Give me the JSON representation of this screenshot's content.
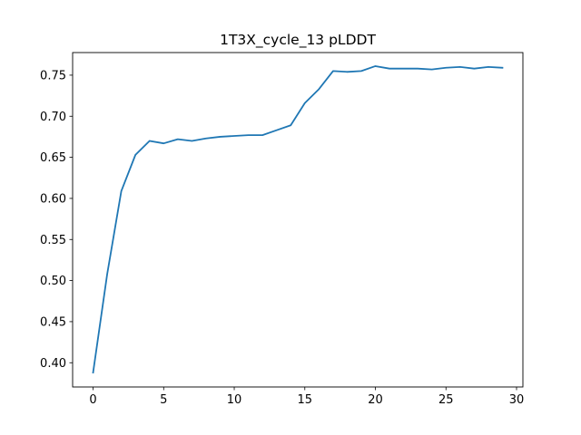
{
  "chart_data": {
    "type": "line",
    "title": "1T3X_cycle_13 pLDDT",
    "xlabel": "",
    "ylabel": "",
    "xlim": [
      -1.45,
      30.45
    ],
    "ylim": [
      0.3705,
      0.7775
    ],
    "xticks": [
      0,
      5,
      10,
      15,
      20,
      25,
      30
    ],
    "yticks": [
      0.4,
      0.45,
      0.5,
      0.55,
      0.6,
      0.65,
      0.7,
      0.75
    ],
    "x_tick_labels": [
      "0",
      "5",
      "10",
      "15",
      "20",
      "25",
      "30"
    ],
    "y_tick_labels": [
      "0.40",
      "0.45",
      "0.50",
      "0.55",
      "0.60",
      "0.65",
      "0.70",
      "0.75"
    ],
    "grid": false,
    "legend": "none",
    "series": [
      {
        "color": "#1f77b4",
        "x": [
          0,
          1,
          2,
          3,
          4,
          5,
          6,
          7,
          8,
          9,
          10,
          11,
          12,
          13,
          14,
          15,
          16,
          17,
          18,
          19,
          20,
          21,
          22,
          23,
          24,
          25,
          26,
          27,
          28,
          29
        ],
        "y": [
          0.388,
          0.508,
          0.609,
          0.653,
          0.67,
          0.667,
          0.672,
          0.67,
          0.673,
          0.675,
          0.676,
          0.677,
          0.677,
          0.683,
          0.689,
          0.716,
          0.733,
          0.755,
          0.754,
          0.755,
          0.761,
          0.758,
          0.758,
          0.758,
          0.757,
          0.759,
          0.76,
          0.758,
          0.76,
          0.759
        ]
      }
    ]
  }
}
